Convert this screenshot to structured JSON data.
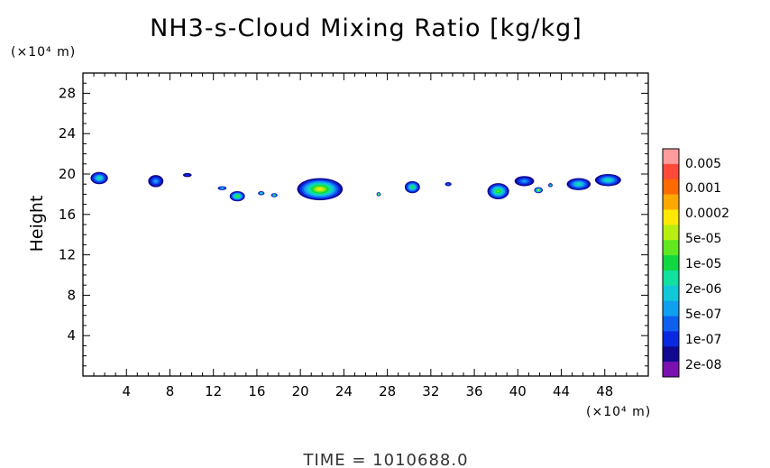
{
  "chart_data": {
    "type": "heatmap",
    "title": "NH3-s-Cloud Mixing Ratio [kg/kg]",
    "ylabel": "Height",
    "y_unit": "(×10⁴ m)",
    "x_unit": "(×10⁴ m)",
    "xlim": [
      0,
      52
    ],
    "ylim": [
      0,
      30
    ],
    "x_ticks": [
      4,
      8,
      12,
      16,
      20,
      24,
      28,
      32,
      36,
      40,
      44,
      48
    ],
    "y_ticks": [
      4,
      8,
      12,
      16,
      20,
      24,
      28
    ],
    "footer": "TIME = 1010688.0",
    "colorbar": {
      "labels": [
        "0.005",
        "0.001",
        "0.0002",
        "5e-05",
        "1e-05",
        "2e-06",
        "5e-07",
        "1e-07",
        "2e-08"
      ],
      "colors": [
        "#ff9b9b",
        "#ff4a3a",
        "#ff6a00",
        "#ffa800",
        "#ffe800",
        "#b8ee10",
        "#60e820",
        "#10d840",
        "#10e0a0",
        "#10c8d8",
        "#10a0f0",
        "#1060f0",
        "#0a28e0",
        "#100890",
        "#7a10b0"
      ]
    },
    "cloud_patches": [
      {
        "x": 1.5,
        "y": 19.6,
        "rx": 0.8,
        "ry": 0.6,
        "level": 5
      },
      {
        "x": 6.7,
        "y": 19.3,
        "rx": 0.7,
        "ry": 0.6,
        "level": 3
      },
      {
        "x": 9.6,
        "y": 19.9,
        "rx": 0.4,
        "ry": 0.2,
        "level": 1
      },
      {
        "x": 12.8,
        "y": 18.6,
        "rx": 0.4,
        "ry": 0.2,
        "level": 4
      },
      {
        "x": 14.2,
        "y": 17.8,
        "rx": 0.7,
        "ry": 0.5,
        "level": 7
      },
      {
        "x": 16.4,
        "y": 18.1,
        "rx": 0.3,
        "ry": 0.2,
        "level": 5
      },
      {
        "x": 17.6,
        "y": 17.9,
        "rx": 0.3,
        "ry": 0.2,
        "level": 6
      },
      {
        "x": 21.8,
        "y": 18.5,
        "rx": 2.1,
        "ry": 1.1,
        "level": 9
      },
      {
        "x": 27.2,
        "y": 18.0,
        "rx": 0.2,
        "ry": 0.2,
        "level": 7
      },
      {
        "x": 30.3,
        "y": 18.7,
        "rx": 0.7,
        "ry": 0.6,
        "level": 6
      },
      {
        "x": 33.6,
        "y": 19.0,
        "rx": 0.3,
        "ry": 0.2,
        "level": 2
      },
      {
        "x": 38.2,
        "y": 18.3,
        "rx": 1.0,
        "ry": 0.8,
        "level": 7
      },
      {
        "x": 40.6,
        "y": 19.3,
        "rx": 0.9,
        "ry": 0.5,
        "level": 3
      },
      {
        "x": 41.9,
        "y": 18.4,
        "rx": 0.4,
        "ry": 0.3,
        "level": 8
      },
      {
        "x": 43.0,
        "y": 18.9,
        "rx": 0.2,
        "ry": 0.2,
        "level": 4
      },
      {
        "x": 45.6,
        "y": 19.0,
        "rx": 1.1,
        "ry": 0.6,
        "level": 5
      },
      {
        "x": 48.3,
        "y": 19.4,
        "rx": 1.2,
        "ry": 0.6,
        "level": 5
      }
    ]
  }
}
